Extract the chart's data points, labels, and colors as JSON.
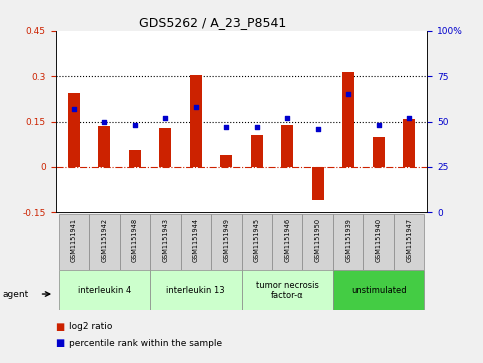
{
  "title": "GDS5262 / A_23_P8541",
  "samples": [
    "GSM1151941",
    "GSM1151942",
    "GSM1151948",
    "GSM1151943",
    "GSM1151944",
    "GSM1151949",
    "GSM1151945",
    "GSM1151946",
    "GSM1151950",
    "GSM1151939",
    "GSM1151940",
    "GSM1151947"
  ],
  "log2_ratio": [
    0.245,
    0.135,
    0.055,
    0.13,
    0.305,
    0.04,
    0.105,
    0.14,
    -0.11,
    0.315,
    0.1,
    0.16
  ],
  "percentile": [
    57,
    50,
    48,
    52,
    58,
    47,
    47,
    52,
    46,
    65,
    48,
    52
  ],
  "ylim_left": [
    -0.15,
    0.45
  ],
  "ylim_right": [
    0,
    100
  ],
  "yticks_left": [
    -0.15,
    0,
    0.15,
    0.3,
    0.45
  ],
  "yticks_right": [
    0,
    25,
    50,
    75,
    100
  ],
  "hline_dotted": [
    0.15,
    0.3
  ],
  "hline_dash": 0,
  "bar_color": "#cc2200",
  "dot_color": "#0000cc",
  "groups": [
    {
      "label": "interleukin 4",
      "start": 0,
      "end": 3,
      "color": "#ccffcc"
    },
    {
      "label": "interleukin 13",
      "start": 3,
      "end": 6,
      "color": "#ccffcc"
    },
    {
      "label": "tumor necrosis\nfactor-α",
      "start": 6,
      "end": 9,
      "color": "#ccffcc"
    },
    {
      "label": "unstimulated",
      "start": 9,
      "end": 12,
      "color": "#44cc44"
    }
  ],
  "legend_items": [
    {
      "label": "log2 ratio",
      "color": "#cc2200"
    },
    {
      "label": "percentile rank within the sample",
      "color": "#0000cc"
    }
  ],
  "agent_label": "agent",
  "fig_bg": "#f0f0f0",
  "plot_bg": "#ffffff",
  "bar_width": 0.4,
  "title_fontsize": 9,
  "tick_fontsize": 6.5,
  "sample_fontsize": 4.8,
  "group_fontsize": 6,
  "legend_fontsize": 6.5
}
